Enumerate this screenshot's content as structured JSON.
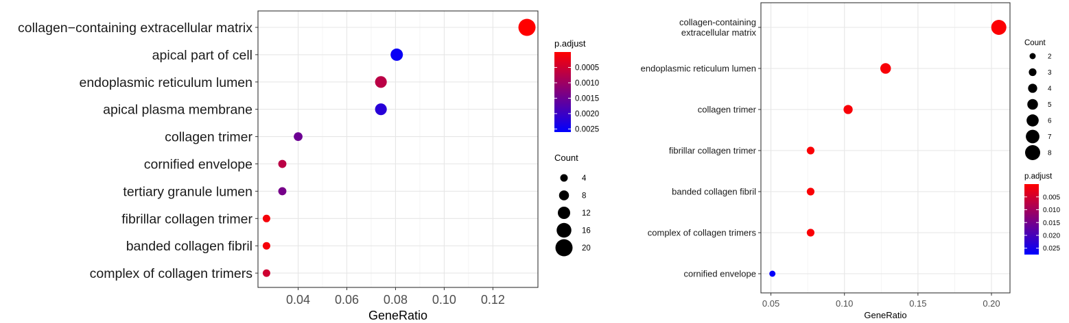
{
  "chart_data": [
    {
      "type": "scatter",
      "xlabel": "GeneRatio",
      "ylabel": "",
      "x_ticks": [
        0.04,
        0.06,
        0.08,
        0.1,
        0.12
      ],
      "x_tick_labels": [
        "0.04",
        "0.06",
        "0.08",
        "0.10",
        "0.12"
      ],
      "xlim": [
        0.0235,
        0.1385
      ],
      "grid": true,
      "categories": [
        "collagen−containing extracellular matrix",
        "apical part of cell",
        "endoplasmic reticulum lumen",
        "apical plasma membrane",
        "collagen trimer",
        "cornified envelope",
        "tertiary granule lumen",
        "fibrillar collagen trimer",
        "banded collagen fibril",
        "complex of collagen trimers"
      ],
      "points": [
        {
          "x": 0.134,
          "count": 20,
          "p_adjust": 0.0
        },
        {
          "x": 0.0805,
          "count": 12,
          "p_adjust": 0.0025
        },
        {
          "x": 0.074,
          "count": 11,
          "p_adjust": 0.0007
        },
        {
          "x": 0.074,
          "count": 11,
          "p_adjust": 0.0022
        },
        {
          "x": 0.04,
          "count": 6,
          "p_adjust": 0.0015
        },
        {
          "x": 0.0335,
          "count": 5,
          "p_adjust": 0.0007
        },
        {
          "x": 0.0335,
          "count": 5,
          "p_adjust": 0.0014
        },
        {
          "x": 0.027,
          "count": 4,
          "p_adjust": 0.0001
        },
        {
          "x": 0.027,
          "count": 4,
          "p_adjust": 0.0001
        },
        {
          "x": 0.027,
          "count": 4,
          "p_adjust": 0.0005
        }
      ],
      "legends": {
        "order": [
          "p.adjust",
          "Count"
        ],
        "color_title": "p.adjust",
        "color_ticks": [
          {
            "value": 0.0005,
            "label": "0.0005"
          },
          {
            "value": 0.001,
            "label": "0.0010"
          },
          {
            "value": 0.0015,
            "label": "0.0015"
          },
          {
            "value": 0.002,
            "label": "0.0020"
          },
          {
            "value": 0.0025,
            "label": "0.0025"
          }
        ],
        "color_range": [
          0.0,
          0.0026
        ],
        "color_low": "#ff0000",
        "color_high": "#0000ff",
        "size_title": "Count",
        "size_values": [
          4,
          8,
          12,
          16,
          20
        ],
        "size_labels": [
          "4",
          "8",
          "12",
          "16",
          "20"
        ]
      }
    },
    {
      "type": "scatter",
      "xlabel": "GeneRatio",
      "ylabel": "",
      "x_ticks": [
        0.05,
        0.1,
        0.15,
        0.2
      ],
      "x_tick_labels": [
        "0.05",
        "0.10",
        "0.15",
        "0.20"
      ],
      "xlim": [
        0.0432,
        0.2126
      ],
      "grid": true,
      "categories": [
        [
          "collagen-containing",
          "extracellular matrix"
        ],
        [
          "endoplasmic reticulum lumen"
        ],
        [
          "collagen trimer"
        ],
        [
          "fibrillar collagen trimer"
        ],
        [
          "banded collagen fibril"
        ],
        [
          "complex of collagen trimers"
        ],
        [
          "cornified envelope"
        ]
      ],
      "points": [
        {
          "x": 0.205,
          "count": 8,
          "p_adjust": 0.0003
        },
        {
          "x": 0.128,
          "count": 5,
          "p_adjust": 0.0008
        },
        {
          "x": 0.1025,
          "count": 4,
          "p_adjust": 0.0008
        },
        {
          "x": 0.077,
          "count": 3,
          "p_adjust": 0.0005
        },
        {
          "x": 0.077,
          "count": 3,
          "p_adjust": 0.0005
        },
        {
          "x": 0.077,
          "count": 3,
          "p_adjust": 0.0005
        },
        {
          "x": 0.051,
          "count": 2,
          "p_adjust": 0.027
        }
      ],
      "legends": {
        "order": [
          "Count",
          "p.adjust"
        ],
        "size_title": "Count",
        "size_values": [
          2,
          3,
          4,
          5,
          6,
          7,
          8
        ],
        "size_labels": [
          "2",
          "3",
          "4",
          "5",
          "6",
          "7",
          "8"
        ],
        "color_title": "p.adjust",
        "color_ticks": [
          {
            "value": 0.005,
            "label": "0.005"
          },
          {
            "value": 0.01,
            "label": "0.010"
          },
          {
            "value": 0.015,
            "label": "0.015"
          },
          {
            "value": 0.02,
            "label": "0.020"
          },
          {
            "value": 0.025,
            "label": "0.025"
          }
        ],
        "color_range": [
          0.0,
          0.0275
        ],
        "color_low": "#ff0000",
        "color_high": "#0000ff"
      }
    }
  ]
}
